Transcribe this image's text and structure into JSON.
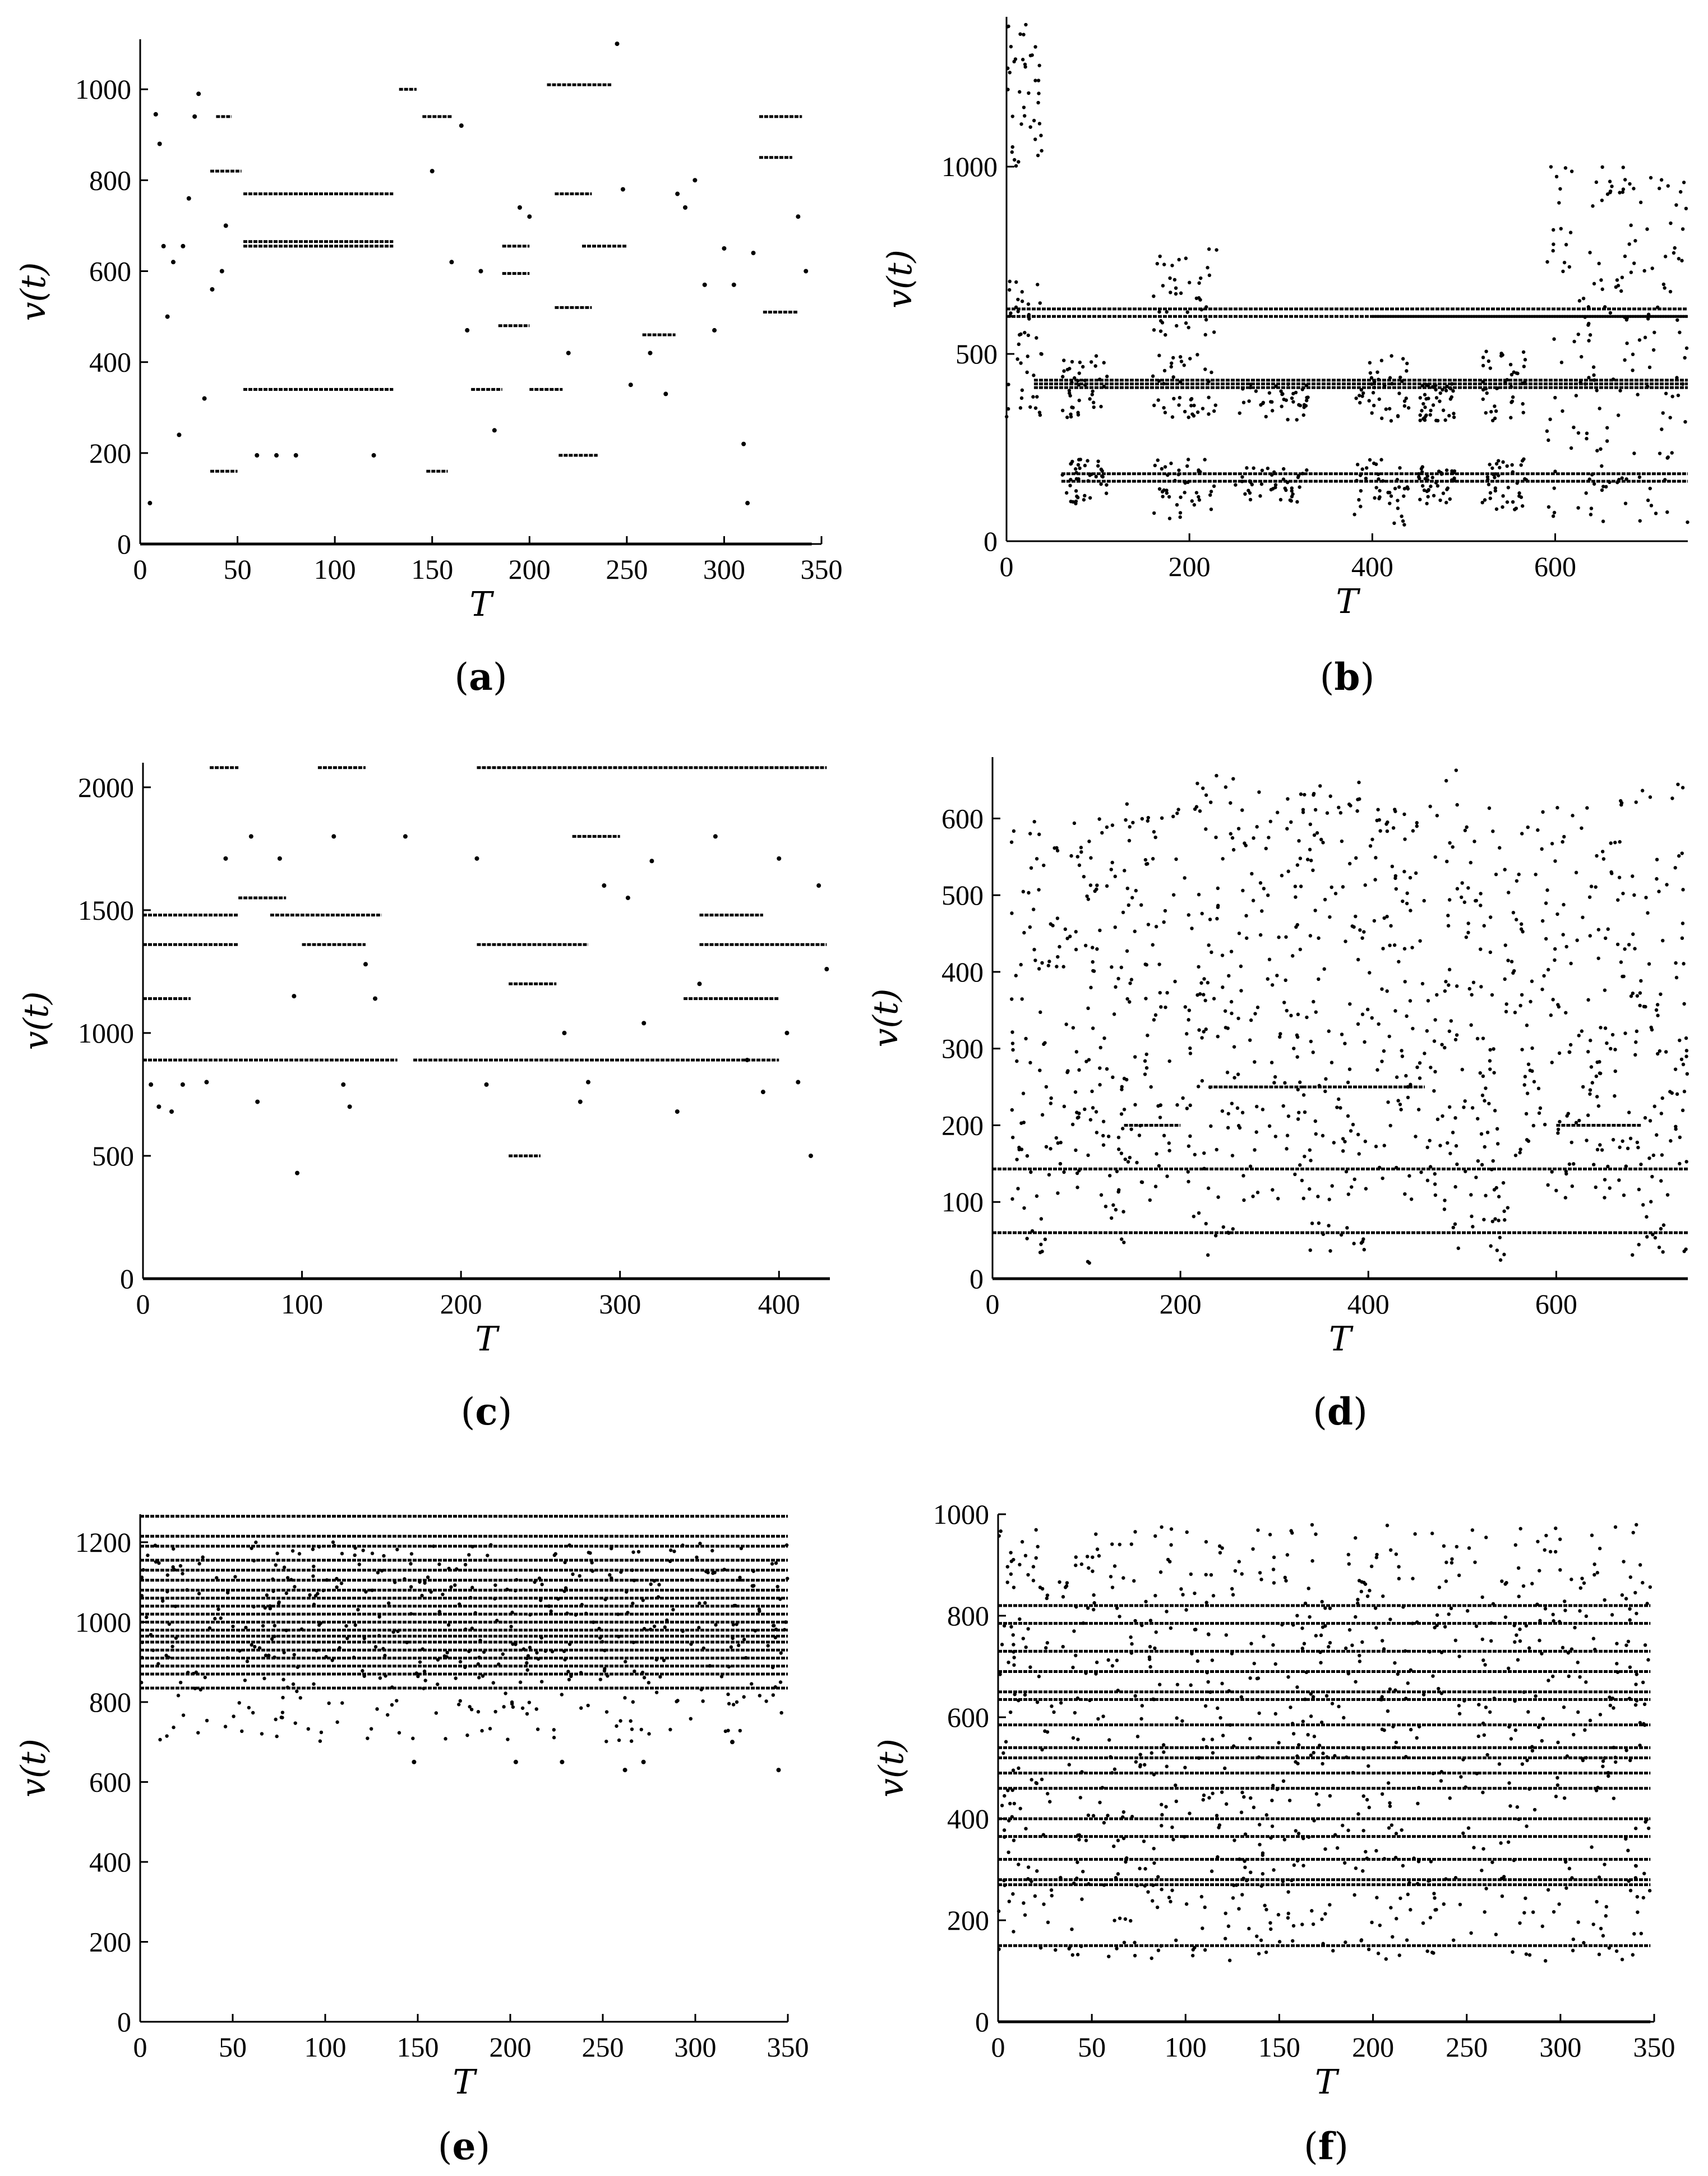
{
  "chart_data": [
    {
      "id": "a",
      "panel_label": "a",
      "type": "scatter",
      "xlabel": "T",
      "ylabel": "v(t)",
      "xlim": [
        0,
        350
      ],
      "ylim": [
        0,
        1110
      ],
      "xticks": [
        0,
        50,
        100,
        150,
        200,
        250,
        300,
        350
      ],
      "yticks": [
        0,
        200,
        400,
        600,
        800,
        1000
      ],
      "dot_color": "#000000",
      "segments": [
        [
          0,
          345,
          0
        ],
        [
          53,
          130,
          340
        ],
        [
          53,
          130,
          655
        ],
        [
          53,
          130,
          665
        ],
        [
          53,
          130,
          770
        ],
        [
          209,
          242,
          1010
        ],
        [
          213,
          232,
          770
        ],
        [
          213,
          232,
          520
        ],
        [
          215,
          235,
          195
        ],
        [
          147,
          158,
          160
        ],
        [
          36,
          50,
          160
        ],
        [
          39,
          47,
          940
        ],
        [
          318,
          340,
          940
        ],
        [
          318,
          335,
          850
        ],
        [
          320,
          338,
          510
        ],
        [
          184,
          200,
          480
        ],
        [
          170,
          186,
          340
        ],
        [
          258,
          275,
          460
        ],
        [
          227,
          250,
          655
        ],
        [
          186,
          200,
          655
        ],
        [
          186,
          200,
          595
        ],
        [
          133,
          142,
          1000
        ],
        [
          145,
          160,
          940
        ],
        [
          36,
          52,
          820
        ],
        [
          200,
          217,
          340
        ]
      ],
      "scatter": [
        [
          5,
          90
        ],
        [
          8,
          945
        ],
        [
          10,
          880
        ],
        [
          12,
          655
        ],
        [
          14,
          500
        ],
        [
          17,
          620
        ],
        [
          20,
          240
        ],
        [
          22,
          655
        ],
        [
          25,
          760
        ],
        [
          28,
          940
        ],
        [
          30,
          990
        ],
        [
          33,
          320
        ],
        [
          37,
          560
        ],
        [
          42,
          600
        ],
        [
          44,
          700
        ],
        [
          60,
          195
        ],
        [
          70,
          195
        ],
        [
          80,
          195
        ],
        [
          120,
          195
        ],
        [
          150,
          820
        ],
        [
          160,
          620
        ],
        [
          165,
          920
        ],
        [
          168,
          470
        ],
        [
          175,
          600
        ],
        [
          182,
          250
        ],
        [
          195,
          740
        ],
        [
          200,
          720
        ],
        [
          220,
          420
        ],
        [
          245,
          1100
        ],
        [
          248,
          780
        ],
        [
          252,
          350
        ],
        [
          262,
          420
        ],
        [
          270,
          330
        ],
        [
          276,
          770
        ],
        [
          280,
          740
        ],
        [
          285,
          800
        ],
        [
          290,
          570
        ],
        [
          295,
          470
        ],
        [
          300,
          650
        ],
        [
          305,
          570
        ],
        [
          310,
          220
        ],
        [
          312,
          90
        ],
        [
          315,
          640
        ],
        [
          338,
          720
        ],
        [
          342,
          600
        ]
      ]
    },
    {
      "id": "b",
      "panel_label": "b",
      "type": "scatter",
      "xlabel": "T",
      "ylabel": "v(t)",
      "xlim": [
        0,
        745
      ],
      "ylim": [
        0,
        1400
      ],
      "xticks": [
        0,
        200,
        400,
        600
      ],
      "yticks": [
        0,
        500,
        1000
      ],
      "dot_color": "#000000",
      "segments": [
        [
          0,
          745,
          620
        ],
        [
          0,
          745,
          600
        ],
        [
          30,
          745,
          430
        ],
        [
          30,
          745,
          420
        ],
        [
          30,
          745,
          410
        ],
        [
          60,
          745,
          180
        ],
        [
          60,
          745,
          160
        ],
        [
          400,
          745,
          600
        ]
      ],
      "clusters": [
        [
          0,
          40,
          300,
          700
        ],
        [
          60,
          110,
          80,
          220
        ],
        [
          60,
          110,
          330,
          500
        ],
        [
          160,
          230,
          60,
          220
        ],
        [
          160,
          230,
          330,
          500
        ],
        [
          160,
          230,
          550,
          800
        ],
        [
          250,
          330,
          100,
          200
        ],
        [
          250,
          330,
          320,
          420
        ],
        [
          380,
          440,
          40,
          220
        ],
        [
          380,
          440,
          320,
          500
        ],
        [
          450,
          490,
          100,
          200
        ],
        [
          450,
          490,
          320,
          420
        ],
        [
          520,
          570,
          80,
          220
        ],
        [
          520,
          570,
          320,
          520
        ],
        [
          590,
          745,
          50,
          1000
        ],
        [
          0,
          40,
          1000,
          1380
        ]
      ]
    },
    {
      "id": "c",
      "panel_label": "c",
      "type": "scatter",
      "xlabel": "T",
      "ylabel": "v(t)",
      "xlim": [
        0,
        432
      ],
      "ylim": [
        0,
        2100
      ],
      "xticks": [
        0,
        100,
        200,
        300,
        400
      ],
      "yticks": [
        0,
        500,
        1000,
        1500,
        2000
      ],
      "dot_color": "#000000",
      "segments": [
        [
          0,
          432,
          0
        ],
        [
          170,
          400,
          890
        ],
        [
          0,
          160,
          890
        ],
        [
          0,
          60,
          1480
        ],
        [
          0,
          60,
          1360
        ],
        [
          80,
          150,
          1480
        ],
        [
          210,
          430,
          2080
        ],
        [
          42,
          60,
          2080
        ],
        [
          110,
          140,
          2080
        ],
        [
          210,
          280,
          1360
        ],
        [
          350,
          430,
          1360
        ],
        [
          230,
          260,
          1200
        ],
        [
          0,
          30,
          1140
        ],
        [
          350,
          390,
          1480
        ],
        [
          340,
          400,
          1140
        ],
        [
          100,
          140,
          1360
        ],
        [
          270,
          300,
          1800
        ],
        [
          60,
          90,
          1550
        ],
        [
          230,
          250,
          500
        ]
      ],
      "scatter": [
        [
          5,
          790
        ],
        [
          10,
          700
        ],
        [
          18,
          680
        ],
        [
          25,
          790
        ],
        [
          40,
          800
        ],
        [
          52,
          1710
        ],
        [
          68,
          1800
        ],
        [
          72,
          720
        ],
        [
          86,
          1710
        ],
        [
          97,
          430
        ],
        [
          95,
          1150
        ],
        [
          120,
          1800
        ],
        [
          126,
          790
        ],
        [
          130,
          700
        ],
        [
          140,
          1280
        ],
        [
          146,
          1140
        ],
        [
          165,
          1800
        ],
        [
          210,
          1710
        ],
        [
          216,
          790
        ],
        [
          265,
          1000
        ],
        [
          275,
          720
        ],
        [
          280,
          800
        ],
        [
          290,
          1600
        ],
        [
          305,
          1550
        ],
        [
          315,
          1040
        ],
        [
          320,
          1700
        ],
        [
          336,
          680
        ],
        [
          350,
          1200
        ],
        [
          360,
          1800
        ],
        [
          380,
          890
        ],
        [
          390,
          760
        ],
        [
          400,
          1710
        ],
        [
          405,
          1000
        ],
        [
          412,
          800
        ],
        [
          420,
          500
        ],
        [
          425,
          1600
        ],
        [
          430,
          1260
        ]
      ]
    },
    {
      "id": "d",
      "panel_label": "d",
      "type": "scatter",
      "xlabel": "T",
      "ylabel": "v(t)",
      "xlim": [
        0,
        740
      ],
      "ylim": [
        0,
        680
      ],
      "xticks": [
        0,
        200,
        400,
        600
      ],
      "yticks": [
        0,
        100,
        200,
        300,
        400,
        500,
        600
      ],
      "dot_color": "#000000",
      "segments": [
        [
          0,
          740,
          0
        ],
        [
          0,
          740,
          143
        ],
        [
          0,
          740,
          60
        ],
        [
          230,
          330,
          250
        ],
        [
          330,
          460,
          250
        ],
        [
          140,
          200,
          200
        ],
        [
          600,
          690,
          200
        ]
      ],
      "clusters": [
        [
          20,
          60,
          20,
          600
        ],
        [
          60,
          110,
          100,
          600
        ],
        [
          100,
          140,
          20,
          600
        ],
        [
          140,
          210,
          100,
          620
        ],
        [
          210,
          260,
          20,
          660
        ],
        [
          260,
          330,
          100,
          640
        ],
        [
          330,
          400,
          30,
          650
        ],
        [
          400,
          480,
          100,
          620
        ],
        [
          480,
          520,
          20,
          670
        ],
        [
          520,
          560,
          20,
          620
        ],
        [
          560,
          620,
          100,
          620
        ],
        [
          620,
          680,
          100,
          640
        ],
        [
          680,
          740,
          20,
          650
        ]
      ]
    },
    {
      "id": "e",
      "panel_label": "e",
      "type": "scatter",
      "xlabel": "T",
      "ylabel": "v(t)",
      "xlim": [
        0,
        350
      ],
      "ylim": [
        0,
        1270
      ],
      "xticks": [
        0,
        50,
        100,
        150,
        200,
        250,
        300,
        350
      ],
      "yticks": [
        0,
        200,
        400,
        600,
        800,
        1000,
        1200
      ],
      "dot_color": "#000000",
      "segments": [
        [
          0,
          350,
          1265
        ],
        [
          0,
          350,
          1215
        ],
        [
          0,
          350,
          1190
        ],
        [
          0,
          350,
          1155
        ],
        [
          0,
          350,
          1130
        ],
        [
          0,
          350,
          1105
        ],
        [
          0,
          350,
          1080
        ],
        [
          0,
          350,
          1060
        ],
        [
          0,
          350,
          1040
        ],
        [
          0,
          350,
          1020
        ],
        [
          0,
          350,
          1000
        ],
        [
          0,
          350,
          980
        ],
        [
          0,
          350,
          965
        ],
        [
          0,
          350,
          950
        ],
        [
          0,
          350,
          930
        ],
        [
          0,
          350,
          910
        ],
        [
          0,
          350,
          890
        ],
        [
          0,
          350,
          870
        ],
        [
          0,
          350,
          835
        ]
      ],
      "clusters": [
        [
          0,
          350,
          700,
          1200
        ]
      ],
      "scatter": [
        [
          148,
          650
        ],
        [
          203,
          650
        ],
        [
          228,
          650
        ],
        [
          262,
          630
        ],
        [
          272,
          650
        ],
        [
          345,
          630
        ],
        [
          320,
          700
        ]
      ]
    },
    {
      "id": "f",
      "panel_label": "f",
      "type": "scatter",
      "xlabel": "T",
      "ylabel": "v(t)",
      "xlim": [
        0,
        350
      ],
      "ylim": [
        0,
        1000
      ],
      "xticks": [
        0,
        50,
        100,
        150,
        200,
        250,
        300,
        350
      ],
      "yticks": [
        0,
        200,
        400,
        600,
        800,
        1000
      ],
      "dot_color": "#000000",
      "segments": [
        [
          0,
          348,
          0
        ],
        [
          0,
          348,
          730
        ],
        [
          0,
          348,
          690
        ],
        [
          0,
          348,
          635
        ],
        [
          0,
          348,
          585
        ],
        [
          0,
          348,
          540
        ],
        [
          0,
          348,
          520
        ],
        [
          0,
          348,
          460
        ],
        [
          0,
          348,
          400
        ],
        [
          0,
          348,
          365
        ],
        [
          0,
          348,
          280
        ],
        [
          0,
          348,
          820
        ],
        [
          0,
          348,
          785
        ],
        [
          0,
          348,
          650
        ],
        [
          0,
          348,
          490
        ],
        [
          0,
          348,
          150
        ],
        [
          0,
          348,
          270
        ],
        [
          0,
          348,
          320
        ]
      ],
      "clusters": [
        [
          0,
          348,
          120,
          980
        ]
      ]
    }
  ]
}
